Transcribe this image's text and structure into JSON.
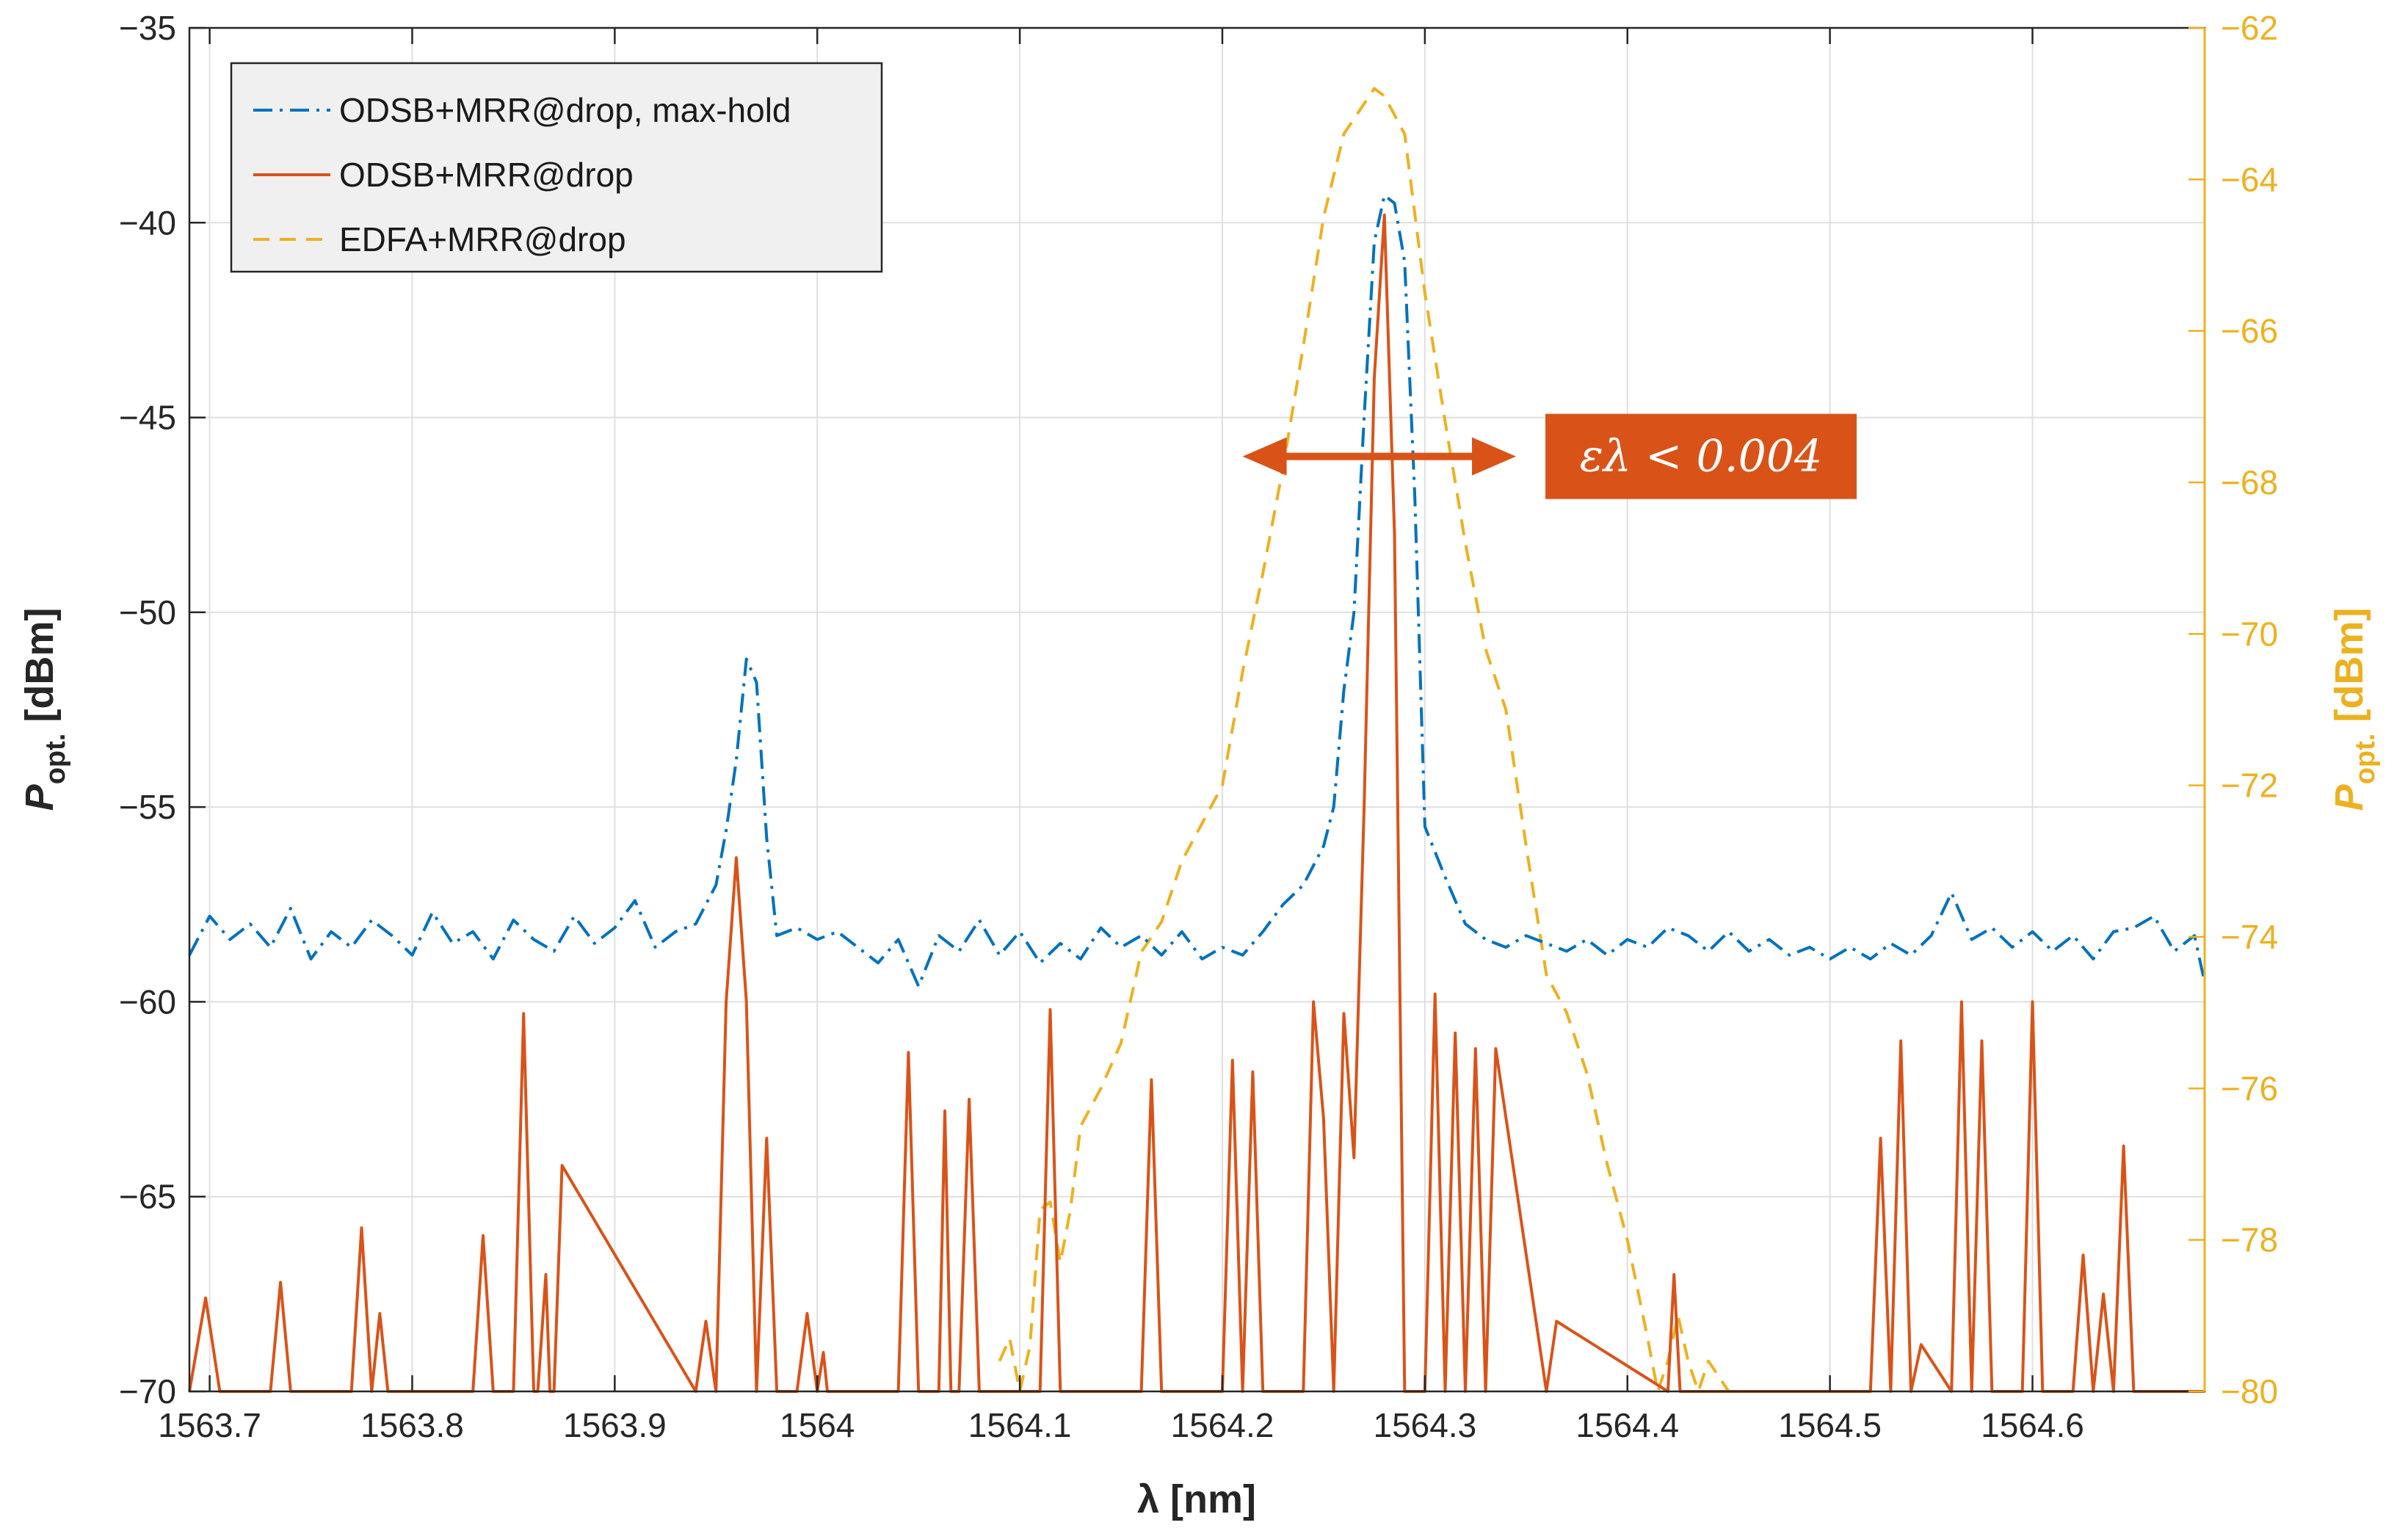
{
  "chart_data": {
    "type": "line",
    "title": "",
    "xlabel": "λ [nm]",
    "ylabel_left": {
      "main": "P",
      "sub": "opt.",
      "unit": " [dBm]"
    },
    "ylabel_right": {
      "main": "P",
      "sub": "opt.",
      "unit": " [dBm]"
    },
    "xlim": [
      1563.69,
      1564.685
    ],
    "ylim_left": [
      -70,
      -35
    ],
    "ylim_right": [
      -80,
      -62
    ],
    "x_ticks": [
      1563.7,
      1563.8,
      1563.9,
      1564.0,
      1564.1,
      1564.2,
      1564.3,
      1564.4,
      1564.5,
      1564.6
    ],
    "x_tick_labels": [
      "1563.7",
      "1563.8",
      "1563.9",
      "1564",
      "1564.1",
      "1564.2",
      "1564.3",
      "1564.4",
      "1564.5",
      "1564.6"
    ],
    "y_left_ticks": [
      -70,
      -65,
      -60,
      -55,
      -50,
      -45,
      -40,
      -35
    ],
    "y_left_tick_labels": [
      "−70",
      "−65",
      "−60",
      "−55",
      "−50",
      "−45",
      "−40",
      "−35"
    ],
    "y_right_ticks": [
      -80,
      -78,
      -76,
      -74,
      -72,
      -70,
      -68,
      -66,
      -64,
      -62
    ],
    "y_right_tick_labels": [
      "−80",
      "−78",
      "−76",
      "−74",
      "−72",
      "−70",
      "−68",
      "−66",
      "−64",
      "−62"
    ],
    "grid": true,
    "legend_position": "top-left",
    "annotation": {
      "text": "ελ < 0.004",
      "arrow_from_x": 1564.21,
      "arrow_to_x": 1564.345,
      "arrow_y": -46,
      "color": "#D95319"
    },
    "series": [
      {
        "name": "ODSB+MRR@drop, max-hold",
        "axis": "left",
        "color": "#0072BD",
        "style": "dashdot",
        "x": [
          1563.69,
          1563.7,
          1563.71,
          1563.72,
          1563.73,
          1563.74,
          1563.75,
          1563.76,
          1563.77,
          1563.78,
          1563.79,
          1563.8,
          1563.81,
          1563.82,
          1563.83,
          1563.84,
          1563.85,
          1563.86,
          1563.87,
          1563.88,
          1563.89,
          1563.9,
          1563.91,
          1563.92,
          1563.93,
          1563.94,
          1563.95,
          1563.955,
          1563.96,
          1563.965,
          1563.97,
          1563.975,
          1563.98,
          1563.99,
          1564.0,
          1564.01,
          1564.02,
          1564.03,
          1564.04,
          1564.05,
          1564.06,
          1564.07,
          1564.08,
          1564.09,
          1564.1,
          1564.11,
          1564.12,
          1564.13,
          1564.14,
          1564.15,
          1564.16,
          1564.17,
          1564.18,
          1564.19,
          1564.2,
          1564.21,
          1564.22,
          1564.23,
          1564.24,
          1564.25,
          1564.255,
          1564.26,
          1564.265,
          1564.27,
          1564.275,
          1564.28,
          1564.285,
          1564.29,
          1564.295,
          1564.3,
          1564.31,
          1564.32,
          1564.33,
          1564.34,
          1564.35,
          1564.36,
          1564.37,
          1564.38,
          1564.39,
          1564.4,
          1564.41,
          1564.42,
          1564.43,
          1564.44,
          1564.45,
          1564.46,
          1564.47,
          1564.48,
          1564.49,
          1564.5,
          1564.51,
          1564.52,
          1564.53,
          1564.54,
          1564.55,
          1564.56,
          1564.57,
          1564.58,
          1564.59,
          1564.6,
          1564.61,
          1564.62,
          1564.63,
          1564.64,
          1564.65,
          1564.66,
          1564.67,
          1564.68,
          1564.685
        ],
        "y": [
          -58.8,
          -57.8,
          -58.4,
          -58.0,
          -58.6,
          -57.6,
          -58.9,
          -58.2,
          -58.6,
          -57.9,
          -58.3,
          -58.8,
          -57.7,
          -58.5,
          -58.2,
          -58.9,
          -57.9,
          -58.4,
          -58.7,
          -57.8,
          -58.5,
          -58.1,
          -57.4,
          -58.6,
          -58.2,
          -58.0,
          -57.0,
          -55.6,
          -53.8,
          -51.2,
          -51.8,
          -55.8,
          -58.3,
          -58.1,
          -58.4,
          -58.2,
          -58.6,
          -59.0,
          -58.4,
          -59.6,
          -58.3,
          -58.7,
          -57.9,
          -58.8,
          -58.2,
          -59.0,
          -58.5,
          -58.9,
          -58.1,
          -58.6,
          -58.3,
          -58.8,
          -58.2,
          -58.9,
          -58.6,
          -58.8,
          -58.2,
          -57.5,
          -57.0,
          -56.0,
          -55.0,
          -52.0,
          -50.0,
          -45.0,
          -40.5,
          -39.3,
          -39.5,
          -41.0,
          -47.0,
          -55.5,
          -56.8,
          -58.0,
          -58.4,
          -58.6,
          -58.3,
          -58.5,
          -58.7,
          -58.4,
          -58.8,
          -58.4,
          -58.6,
          -58.1,
          -58.3,
          -58.7,
          -58.2,
          -58.7,
          -58.4,
          -58.8,
          -58.6,
          -58.9,
          -58.6,
          -58.9,
          -58.5,
          -58.8,
          -58.3,
          -57.2,
          -58.4,
          -58.1,
          -58.6,
          -58.2,
          -58.7,
          -58.3,
          -58.9,
          -58.2,
          -58.1,
          -57.8,
          -58.7,
          -58.3,
          -59.5
        ]
      },
      {
        "name": "ODSB+MRR@drop",
        "axis": "left",
        "color": "#D95319",
        "style": "solid",
        "x": [
          1563.69,
          1563.698,
          1563.705,
          1563.73,
          1563.735,
          1563.74,
          1563.77,
          1563.775,
          1563.78,
          1563.784,
          1563.788,
          1563.83,
          1563.835,
          1563.84,
          1563.85,
          1563.855,
          1563.86,
          1563.862,
          1563.866,
          1563.868,
          1563.87,
          1563.874,
          1563.94,
          1563.945,
          1563.95,
          1563.955,
          1563.96,
          1563.965,
          1563.97,
          1563.975,
          1563.98,
          1563.99,
          1563.995,
          1564.0,
          1564.003,
          1564.005,
          1564.04,
          1564.045,
          1564.05,
          1564.06,
          1564.063,
          1564.066,
          1564.07,
          1564.075,
          1564.08,
          1564.11,
          1564.115,
          1564.12,
          1564.16,
          1564.165,
          1564.17,
          1564.2,
          1564.205,
          1564.21,
          1564.215,
          1564.22,
          1564.225,
          1564.24,
          1564.245,
          1564.25,
          1564.255,
          1564.26,
          1564.265,
          1564.27,
          1564.275,
          1564.28,
          1564.285,
          1564.29,
          1564.3,
          1564.305,
          1564.31,
          1564.315,
          1564.32,
          1564.325,
          1564.33,
          1564.335,
          1564.36,
          1564.365,
          1564.42,
          1564.423,
          1564.426,
          1564.43,
          1564.5,
          1564.52,
          1564.525,
          1564.53,
          1564.535,
          1564.54,
          1564.545,
          1564.56,
          1564.565,
          1564.57,
          1564.575,
          1564.58,
          1564.595,
          1564.6,
          1564.605,
          1564.62,
          1564.625,
          1564.63,
          1564.635,
          1564.64,
          1564.645,
          1564.65,
          1564.685
        ],
        "y": [
          -70,
          -67.6,
          -70,
          -70,
          -67.2,
          -70,
          -70,
          -65.8,
          -70,
          -68.0,
          -70,
          -70,
          -66.0,
          -70,
          -70,
          -60.3,
          -70,
          -70,
          -67.0,
          -70,
          -70,
          -64.2,
          -70,
          -68.2,
          -70,
          -60.0,
          -56.3,
          -60.0,
          -70,
          -63.5,
          -70,
          -70,
          -68.0,
          -70,
          -69.0,
          -70,
          -70,
          -61.3,
          -70,
          -70,
          -62.8,
          -70,
          -70,
          -62.5,
          -70,
          -70,
          -60.2,
          -70,
          -70,
          -62.0,
          -70,
          -70,
          -61.5,
          -70,
          -61.8,
          -70,
          -70,
          -70,
          -60.0,
          -63.0,
          -70,
          -60.3,
          -64.0,
          -55.0,
          -44.0,
          -39.8,
          -48.0,
          -70,
          -70,
          -59.8,
          -70,
          -60.8,
          -70,
          -61.2,
          -70,
          -61.2,
          -70,
          -68.2,
          -70,
          -67.0,
          -70,
          -70,
          -70,
          -70,
          -63.5,
          -70,
          -61.0,
          -70,
          -68.8,
          -70,
          -60.0,
          -70,
          -61.0,
          -70,
          -70,
          -60.0,
          -70,
          -70,
          -66.5,
          -70,
          -67.5,
          -70,
          -63.7,
          -70,
          -70
        ]
      },
      {
        "name": "EDFA+MRR@drop",
        "axis": "right",
        "color": "#EDB120",
        "style": "dashed",
        "x": [
          1564.09,
          1564.095,
          1564.1,
          1564.105,
          1564.11,
          1564.115,
          1564.12,
          1564.125,
          1564.13,
          1564.14,
          1564.15,
          1564.16,
          1564.17,
          1564.18,
          1564.19,
          1564.2,
          1564.21,
          1564.22,
          1564.23,
          1564.24,
          1564.25,
          1564.26,
          1564.27,
          1564.275,
          1564.28,
          1564.29,
          1564.3,
          1564.31,
          1564.32,
          1564.33,
          1564.34,
          1564.35,
          1564.36,
          1564.37,
          1564.38,
          1564.39,
          1564.4,
          1564.41,
          1564.415,
          1564.42,
          1564.425,
          1564.43,
          1564.435,
          1564.44,
          1564.45
        ],
        "y": [
          -79.6,
          -79.3,
          -80.0,
          -79.4,
          -77.6,
          -77.5,
          -78.3,
          -77.6,
          -76.5,
          -76.0,
          -75.4,
          -74.2,
          -73.8,
          -73.0,
          -72.5,
          -72.0,
          -70.5,
          -69.2,
          -67.8,
          -66.2,
          -64.5,
          -63.4,
          -63.0,
          -62.8,
          -62.9,
          -63.4,
          -65.5,
          -67.2,
          -68.8,
          -70.2,
          -71.0,
          -72.8,
          -74.5,
          -75.0,
          -75.8,
          -77.0,
          -78.0,
          -79.3,
          -80.0,
          -79.6,
          -79.0,
          -79.6,
          -80.0,
          -79.6,
          -80.0
        ]
      }
    ]
  }
}
